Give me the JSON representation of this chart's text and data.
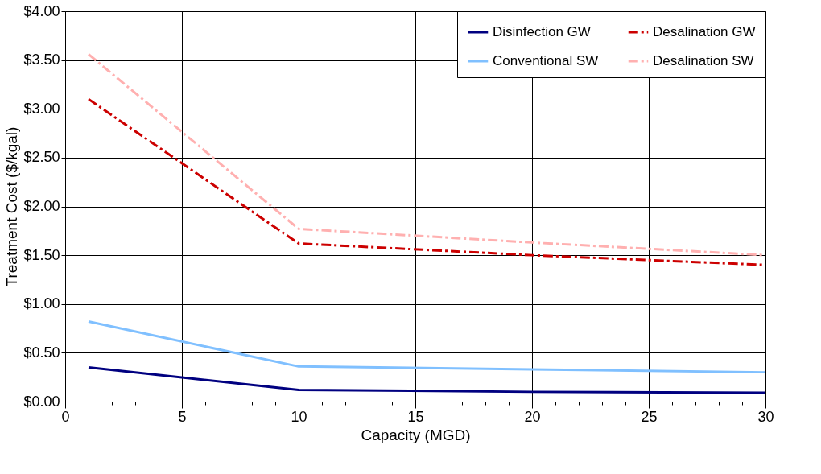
{
  "chart_data": {
    "type": "line",
    "xlabel": "Capacity (MGD)",
    "ylabel": "Treatment Cost ($/kgal)",
    "xlim": [
      0,
      30
    ],
    "ylim": [
      0,
      4
    ],
    "xticks": [
      0,
      {
        "value": 1,
        "label": null
      },
      {
        "value": 2,
        "label": null
      },
      {
        "value": 3,
        "label": null
      },
      {
        "value": 4,
        "label": null
      },
      5,
      {
        "value": 6,
        "label": null
      },
      {
        "value": 7,
        "label": null
      },
      {
        "value": 8,
        "label": null
      },
      {
        "value": 9,
        "label": null
      },
      10,
      {
        "value": 11,
        "label": null
      },
      {
        "value": 12,
        "label": null
      },
      {
        "value": 13,
        "label": null
      },
      {
        "value": 14,
        "label": null
      },
      15,
      {
        "value": 16,
        "label": null
      },
      {
        "value": 17,
        "label": null
      },
      {
        "value": 18,
        "label": null
      },
      {
        "value": 19,
        "label": null
      },
      20,
      {
        "value": 21,
        "label": null
      },
      {
        "value": 22,
        "label": null
      },
      {
        "value": 23,
        "label": null
      },
      {
        "value": 24,
        "label": null
      },
      25,
      {
        "value": 26,
        "label": null
      },
      {
        "value": 27,
        "label": null
      },
      {
        "value": 28,
        "label": null
      },
      {
        "value": 29,
        "label": null
      },
      30
    ],
    "yticks": [
      {
        "value": 0,
        "label": "$0.00"
      },
      {
        "value": 0.5,
        "label": "$0.50"
      },
      {
        "value": 1,
        "label": "$1.00"
      },
      {
        "value": 1.5,
        "label": "$1.50"
      },
      {
        "value": 2,
        "label": "$2.00"
      },
      {
        "value": 2.5,
        "label": "$2.50"
      },
      {
        "value": 3,
        "label": "$3.00"
      },
      {
        "value": 3.5,
        "label": "$3.50"
      },
      {
        "value": 4,
        "label": "$4.00"
      }
    ],
    "grid": true,
    "legend": "top right",
    "marker": "none",
    "series": [
      {
        "name": "Disinfection GW",
        "color": "#000080",
        "line_style": "solid",
        "x": [
          1,
          10,
          20,
          30
        ],
        "values": [
          0.35,
          0.12,
          0.1,
          0.09
        ]
      },
      {
        "name": "Conventional SW",
        "color": "#80c0ff",
        "line_style": "solid",
        "x": [
          1,
          10,
          20,
          30
        ],
        "values": [
          0.82,
          0.36,
          0.33,
          0.3
        ]
      },
      {
        "name": "Desalination GW",
        "color": "#cc0000",
        "line_style": "dashed",
        "x": [
          1,
          10,
          20,
          30
        ],
        "values": [
          3.1,
          1.62,
          1.5,
          1.4
        ]
      },
      {
        "name": "Desalination SW",
        "color": "#ffb0b0",
        "line_style": "dashed",
        "x": [
          1,
          10,
          20,
          30
        ],
        "values": [
          3.56,
          1.77,
          1.63,
          1.5
        ]
      }
    ]
  }
}
